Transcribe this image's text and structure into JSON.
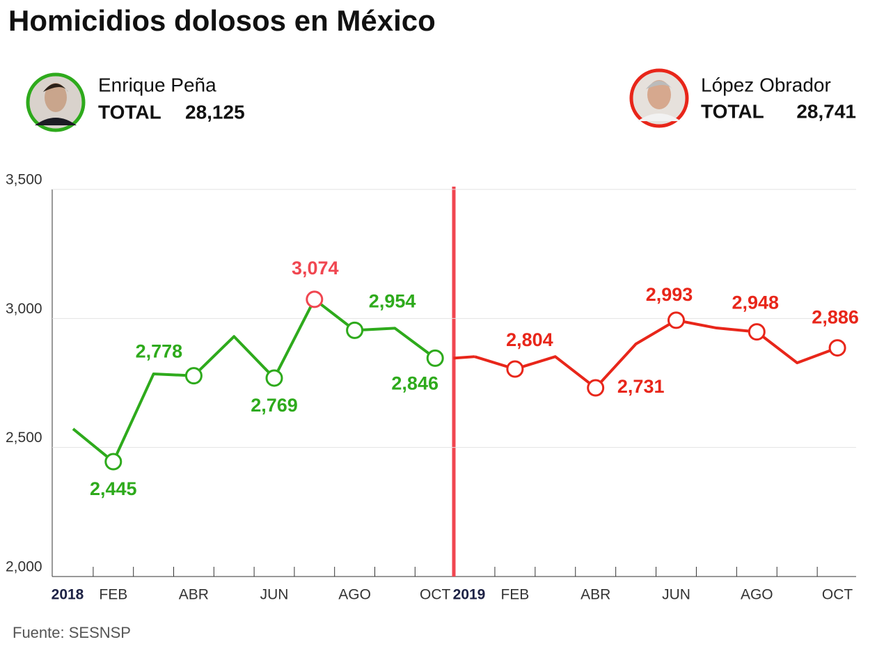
{
  "chart_data": {
    "type": "line",
    "title": "Homicidios dolosos en México",
    "source": "Fuente: SESNSP",
    "total_caption": "TOTAL",
    "categories": [
      "2018",
      "FEB",
      null,
      "ABR",
      null,
      "JUN",
      null,
      "AGO",
      null,
      "OCT",
      "2019",
      "FEB",
      null,
      "ABR",
      null,
      "JUN",
      null,
      "AGO",
      null,
      "OCT"
    ],
    "series": [
      {
        "name": "Enrique Peña",
        "color": "#2eaa1c",
        "highlight_color": "#f04650",
        "total": "28,125",
        "values": [
          2572,
          2445,
          2785,
          2778,
          2930,
          2769,
          3074,
          2954,
          2962,
          2846,
          null,
          null,
          null,
          null,
          null,
          null,
          null,
          null,
          null,
          null
        ],
        "value_labels": [
          null,
          "2,445",
          null,
          "2,778",
          null,
          "2,769",
          "3,074",
          "2,954",
          null,
          "2,846",
          null,
          null,
          null,
          null,
          null,
          null,
          null,
          null,
          null,
          null
        ]
      },
      {
        "name": "López Obrador",
        "color": "#e8261a",
        "total": "28,741",
        "values": [
          null,
          null,
          null,
          null,
          null,
          null,
          null,
          null,
          null,
          null,
          2852,
          2804,
          2852,
          2731,
          2901,
          2993,
          2963,
          2948,
          2828,
          2886
        ],
        "value_labels": [
          null,
          null,
          null,
          null,
          null,
          null,
          null,
          null,
          null,
          null,
          null,
          "2,804",
          null,
          "2,731",
          null,
          "2,993",
          null,
          "2,948",
          null,
          "2,886"
        ]
      }
    ],
    "ylim": [
      2000,
      3500
    ],
    "yticks": [
      {
        "value": 2000,
        "label": "2,000"
      },
      {
        "value": 2500,
        "label": "2,500"
      },
      {
        "value": 3000,
        "label": "3,000"
      },
      {
        "value": 3500,
        "label": "3,500"
      }
    ],
    "grid": true
  }
}
